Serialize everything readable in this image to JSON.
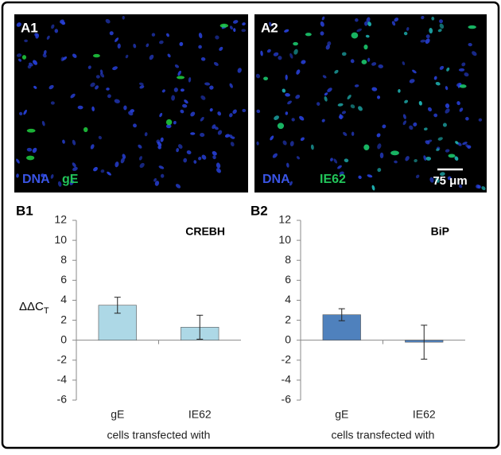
{
  "panels": [
    {
      "label": "A1",
      "stains": [
        "DNA",
        "gE"
      ]
    },
    {
      "label": "A2",
      "stains": [
        "DNA",
        "IE62"
      ],
      "scale_bar": "75 μm"
    }
  ],
  "chart_data": [
    {
      "type": "bar",
      "panel": "B1",
      "title": "CREBH",
      "ylabel": {
        "main": "ΔΔC",
        "sub": "T"
      },
      "xlabel": "cells transfected with",
      "categories": [
        "gE",
        "IE62"
      ],
      "values": [
        3.5,
        1.3
      ],
      "errors": [
        0.8,
        1.2
      ],
      "color": "#add8e6",
      "ylim": [
        -6,
        12
      ],
      "yticks": [
        -6,
        -4,
        -2,
        0,
        2,
        4,
        6,
        8,
        10,
        12
      ]
    },
    {
      "type": "bar",
      "panel": "B2",
      "title": "BiP",
      "xlabel": "cells transfected with",
      "categories": [
        "gE",
        "IE62"
      ],
      "values": [
        2.55,
        -0.2
      ],
      "errors": [
        0.6,
        1.7
      ],
      "color": "#4f81bd",
      "ylim": [
        -6,
        12
      ],
      "yticks": [
        -6,
        -4,
        -2,
        0,
        2,
        4,
        6,
        8,
        10,
        12
      ]
    }
  ]
}
